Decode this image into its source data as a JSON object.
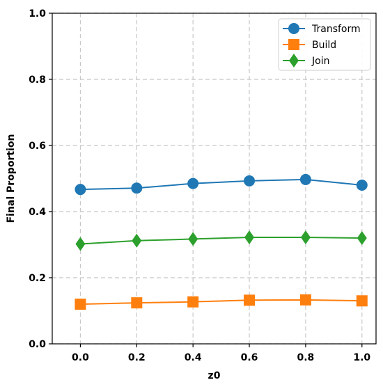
{
  "chart_data": {
    "type": "line",
    "title": "",
    "xlabel": "z0",
    "ylabel": "Final Proportion",
    "xlim": [
      -0.1,
      1.05
    ],
    "ylim": [
      0.0,
      1.0
    ],
    "x": [
      0.0,
      0.2,
      0.4,
      0.6,
      0.8,
      1.0
    ],
    "xticks": [
      "0.0",
      "0.2",
      "0.4",
      "0.6",
      "0.8",
      "1.0"
    ],
    "yticks": [
      "0.0",
      "0.2",
      "0.4",
      "0.6",
      "0.8",
      "1.0"
    ],
    "grid": true,
    "legend_position": "top-right",
    "series": [
      {
        "name": "Transform",
        "color": "#1f77b4",
        "marker": "circle",
        "values": [
          0.467,
          0.471,
          0.485,
          0.493,
          0.497,
          0.48
        ]
      },
      {
        "name": "Build",
        "color": "#ff7f0e",
        "marker": "square",
        "values": [
          0.12,
          0.124,
          0.127,
          0.132,
          0.133,
          0.13
        ]
      },
      {
        "name": "Join",
        "color": "#2ca02c",
        "marker": "diamond",
        "values": [
          0.302,
          0.312,
          0.317,
          0.322,
          0.322,
          0.32
        ]
      }
    ]
  }
}
